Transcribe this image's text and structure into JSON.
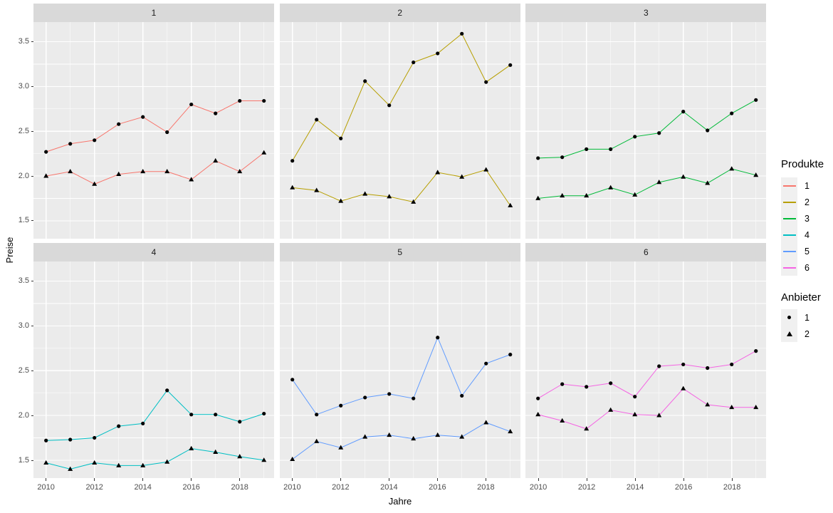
{
  "chart_data": {
    "type": "line",
    "title": "",
    "xlabel": "Jahre",
    "ylabel": "Preise",
    "facet_variable": "Produkte",
    "grid": true,
    "legend_position": "right",
    "x": [
      2010,
      2011,
      2012,
      2013,
      2014,
      2015,
      2016,
      2017,
      2018,
      2019
    ],
    "x_domain": [
      2009.48,
      2019.42
    ],
    "y_domain": [
      1.3,
      3.72
    ],
    "x_major_breaks": [
      2010,
      2012,
      2014,
      2016,
      2018
    ],
    "x_minor_breaks": [
      2011,
      2013,
      2015,
      2017,
      2019
    ],
    "x_tick_labels": [
      "2010",
      "2012",
      "2014",
      "2016",
      "2018"
    ],
    "y_major_breaks": [
      1.5,
      2.0,
      2.5,
      3.0,
      3.5
    ],
    "y_minor_breaks": [
      1.75,
      2.25,
      2.75,
      3.25
    ],
    "y_tick_labels": [
      "1.5",
      "2.0",
      "2.5",
      "3.0",
      "3.5"
    ],
    "facets": [
      {
        "label": "1",
        "color": "#F8766D",
        "series": [
          {
            "anbieter": "1",
            "shape": "circle",
            "values": [
              2.27,
              2.36,
              2.4,
              2.58,
              2.66,
              2.49,
              2.8,
              2.7,
              2.84,
              2.84
            ]
          },
          {
            "anbieter": "2",
            "shape": "triangle",
            "values": [
              2.0,
              2.05,
              1.91,
              2.02,
              2.05,
              2.05,
              1.96,
              2.17,
              2.05,
              2.26
            ]
          }
        ]
      },
      {
        "label": "2",
        "color": "#B79F00",
        "series": [
          {
            "anbieter": "1",
            "shape": "circle",
            "values": [
              2.17,
              2.63,
              2.42,
              3.06,
              2.79,
              3.27,
              3.37,
              3.59,
              3.05,
              3.24
            ]
          },
          {
            "anbieter": "2",
            "shape": "triangle",
            "values": [
              1.87,
              1.84,
              1.72,
              1.8,
              1.77,
              1.71,
              2.04,
              1.99,
              2.07,
              1.67
            ]
          }
        ]
      },
      {
        "label": "3",
        "color": "#00BA38",
        "series": [
          {
            "anbieter": "1",
            "shape": "circle",
            "values": [
              2.2,
              2.21,
              2.3,
              2.3,
              2.44,
              2.48,
              2.72,
              2.51,
              2.7,
              2.85
            ]
          },
          {
            "anbieter": "2",
            "shape": "triangle",
            "values": [
              1.75,
              1.78,
              1.78,
              1.87,
              1.79,
              1.93,
              1.99,
              1.92,
              2.08,
              2.01
            ]
          }
        ]
      },
      {
        "label": "4",
        "color": "#00BFC4",
        "series": [
          {
            "anbieter": "1",
            "shape": "circle",
            "values": [
              1.72,
              1.73,
              1.75,
              1.88,
              1.91,
              2.28,
              2.01,
              2.01,
              1.93,
              2.02
            ]
          },
          {
            "anbieter": "2",
            "shape": "triangle",
            "values": [
              1.47,
              1.4,
              1.47,
              1.44,
              1.44,
              1.48,
              1.63,
              1.59,
              1.54,
              1.5
            ]
          }
        ]
      },
      {
        "label": "5",
        "color": "#619CFF",
        "series": [
          {
            "anbieter": "1",
            "shape": "circle",
            "values": [
              2.4,
              2.01,
              2.11,
              2.2,
              2.24,
              2.19,
              2.87,
              2.22,
              2.58,
              2.68
            ]
          },
          {
            "anbieter": "2",
            "shape": "triangle",
            "values": [
              1.51,
              1.71,
              1.64,
              1.76,
              1.78,
              1.74,
              1.78,
              1.76,
              1.92,
              1.82
            ]
          }
        ]
      },
      {
        "label": "6",
        "color": "#F564E3",
        "series": [
          {
            "anbieter": "1",
            "shape": "circle",
            "values": [
              2.19,
              2.35,
              2.32,
              2.36,
              2.21,
              2.55,
              2.57,
              2.53,
              2.57,
              2.72
            ]
          },
          {
            "anbieter": "2",
            "shape": "triangle",
            "values": [
              2.01,
              1.94,
              1.85,
              2.06,
              2.01,
              2.0,
              2.3,
              2.12,
              2.09,
              2.09
            ]
          }
        ]
      }
    ],
    "legend": {
      "produkte_title": "Produkte",
      "produkte_items": [
        {
          "label": "1",
          "color": "#F8766D"
        },
        {
          "label": "2",
          "color": "#B79F00"
        },
        {
          "label": "3",
          "color": "#00BA38"
        },
        {
          "label": "4",
          "color": "#00BFC4"
        },
        {
          "label": "5",
          "color": "#619CFF"
        },
        {
          "label": "6",
          "color": "#F564E3"
        }
      ],
      "anbieter_title": "Anbieter",
      "anbieter_items": [
        {
          "label": "1",
          "shape": "circle"
        },
        {
          "label": "2",
          "shape": "triangle"
        }
      ]
    },
    "colors": {
      "panel_background": "#EBEBEB",
      "strip_background": "#D9D9D9",
      "gridline": "#FFFFFF",
      "point": "#000000"
    }
  }
}
